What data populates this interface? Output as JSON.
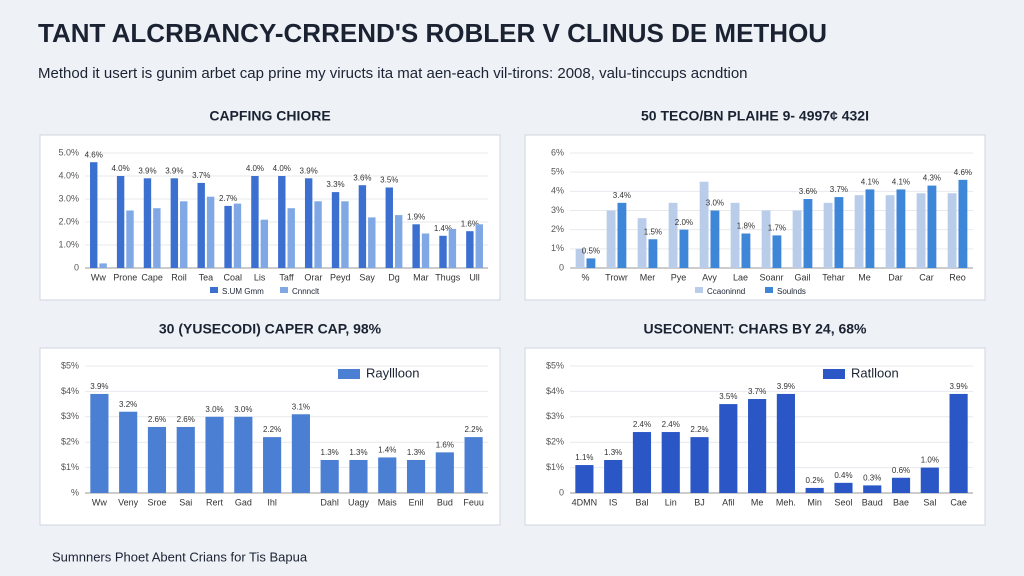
{
  "header": {
    "title": "TANT ALCRBANCY-CRREND'S ROBLER V CLINUS DE METHOU",
    "subtitle": "Method it usert is gunim arbet cap prine my viructs ita mat aen-each vil-tirons: 2008, valu-tinccups acndtion"
  },
  "footer": "Sumnners Phoet Abent Crians for Tis Bapua",
  "chart_data": [
    {
      "type": "bar",
      "title": "CAPFING CHIORE",
      "legend": "bottom",
      "categories": [
        "Ww",
        "Prone",
        "Cape",
        "Roil",
        "Tea",
        "Coal",
        "Lis",
        "Taff",
        "Orar",
        "Peyd",
        "Say",
        "Dg",
        "Mar",
        "Thugs",
        "Ull"
      ],
      "series": [
        {
          "name": "S.UM Gmm",
          "color": "#3b6fd0",
          "values": [
            4.6,
            4.0,
            3.9,
            3.9,
            3.7,
            2.7,
            4.0,
            4.0,
            3.9,
            3.3,
            3.6,
            3.5,
            1.9,
            1.4,
            1.6
          ],
          "value_labels": [
            "4.6%",
            "4.0%",
            "3.9%",
            "3.9%",
            "3.7%",
            "2.7%",
            "4.0%",
            "4.0%",
            "3.9%",
            "3.3%",
            "3.6%",
            "3.5%",
            "1.9%",
            "1.4%",
            "1.6%"
          ]
        },
        {
          "name": "Cnnnclt",
          "color": "#7fa8e4",
          "values": [
            0.2,
            2.5,
            2.6,
            2.9,
            3.1,
            2.8,
            2.1,
            2.6,
            2.9,
            2.9,
            2.2,
            2.3,
            1.5,
            1.7,
            1.9
          ]
        }
      ],
      "ylim": [
        0,
        5
      ],
      "yticks": [
        0,
        {
          "value": 1,
          "label": "1.0%"
        },
        {
          "value": 2,
          "label": "2.0%"
        },
        {
          "value": 3,
          "label": "3.0%"
        },
        {
          "value": 4,
          "label": "4.0%"
        },
        {
          "value": 5,
          "label": "5.0%"
        }
      ]
    },
    {
      "type": "bar",
      "title": "50 TECO/BN PLAIHE 9- 4997¢ 432I",
      "legend": "bottom",
      "categories": [
        "%",
        "Trowr",
        "Mer",
        "Pye",
        "Avy",
        "Lae",
        "Soanr",
        "Gail",
        "Tehar",
        "Me",
        "Dar",
        "Car",
        "Reo"
      ],
      "series": [
        {
          "name": "Ccaoninnd",
          "color": "#b9cdea",
          "values": [
            1.0,
            3.0,
            2.6,
            3.4,
            4.5,
            3.4,
            3.0,
            3.0,
            3.4,
            3.8,
            3.8,
            3.9,
            3.9
          ]
        },
        {
          "name": "Soulnds",
          "color": "#3d86d8",
          "values": [
            0.5,
            3.4,
            1.5,
            2.0,
            3.0,
            1.8,
            1.7,
            3.6,
            3.7,
            4.1,
            4.1,
            4.3,
            4.6
          ],
          "value_labels": [
            "0.5%",
            "3.4%",
            "1.5%",
            "2.0%",
            "3.0%",
            "1.8%",
            "1.7%",
            "3.6%",
            "3.7%",
            "4.1%",
            "4.1%",
            "4.3%",
            "4.6%"
          ]
        }
      ],
      "ylim": [
        0,
        6
      ],
      "yticks": [
        0,
        {
          "value": 1,
          "label": "1%"
        },
        {
          "value": 2,
          "label": "2%"
        },
        {
          "value": 3,
          "label": "3%"
        },
        {
          "value": 4,
          "label": "4%"
        },
        {
          "value": 5,
          "label": "5%"
        },
        {
          "value": 6,
          "label": "6%"
        }
      ]
    },
    {
      "type": "bar",
      "title": "30 (YUSECODI) CAPER CAP, 98%",
      "legend": "top-right",
      "categories": [
        "Ww",
        "Veny",
        "Sroe",
        "Sai",
        "Rert",
        "Gad",
        "Ihl",
        null,
        "Dahl",
        "Uagy",
        "Mais",
        "Enil",
        "Bud",
        "Feuu"
      ],
      "series": [
        {
          "name": "Rayllloon",
          "color": "#4a7fd4",
          "values": [
            3.9,
            3.2,
            2.6,
            2.6,
            3.0,
            3.0,
            2.2,
            3.1,
            1.3,
            1.3,
            1.4,
            1.3,
            1.6,
            2.2
          ],
          "value_labels": [
            "3.9%",
            "3.2%",
            "2.6%",
            "2.6%",
            "3.0%",
            "3.0%",
            "2.2%",
            "3.1%",
            "1.3%",
            "1.3%",
            "1.4%",
            "1.3%",
            "1.6%",
            "2.2%"
          ]
        }
      ],
      "ylim": [
        0,
        5
      ],
      "yticks": [
        {
          "value": 0,
          "label": "%"
        },
        {
          "value": 1,
          "label": "$1%"
        },
        {
          "value": 2,
          "label": "$2%"
        },
        {
          "value": 3,
          "label": "$3%"
        },
        {
          "value": 4,
          "label": "$4%"
        },
        {
          "value": 5,
          "label": "$5%"
        }
      ]
    },
    {
      "type": "bar",
      "title": "USECONENT: CHARS BY 24, 68%",
      "legend": "top-right",
      "categories": [
        "4DMN",
        "IS",
        "Bal",
        "Lin",
        "BJ",
        "Afil",
        "Me",
        "Meh.",
        "Min",
        "Seol",
        "Baud",
        "Bae",
        "Sal",
        "Cae"
      ],
      "series": [
        {
          "name": "Ratlloon",
          "color": "#2a56c6",
          "values": [
            1.1,
            1.3,
            2.4,
            2.4,
            2.2,
            3.5,
            3.7,
            3.9,
            0.2,
            0.4,
            0.3,
            0.6,
            1.0,
            3.9
          ],
          "value_labels": [
            "1.1%",
            "1.3%",
            "2.4%",
            "2.4%",
            "2.2%",
            "3.5%",
            "3.7%",
            "3.9%",
            "0.2%",
            "0.4%",
            "0.3%",
            "0.6%",
            "1.0%",
            "3.9%"
          ]
        }
      ],
      "ylim": [
        0,
        5
      ],
      "yticks": [
        0,
        {
          "value": 1,
          "label": "$1%"
        },
        {
          "value": 2,
          "label": "$2%"
        },
        {
          "value": 3,
          "label": "$3%"
        },
        {
          "value": 4,
          "label": "$4%"
        },
        {
          "value": 5,
          "label": "$5%"
        }
      ]
    }
  ]
}
